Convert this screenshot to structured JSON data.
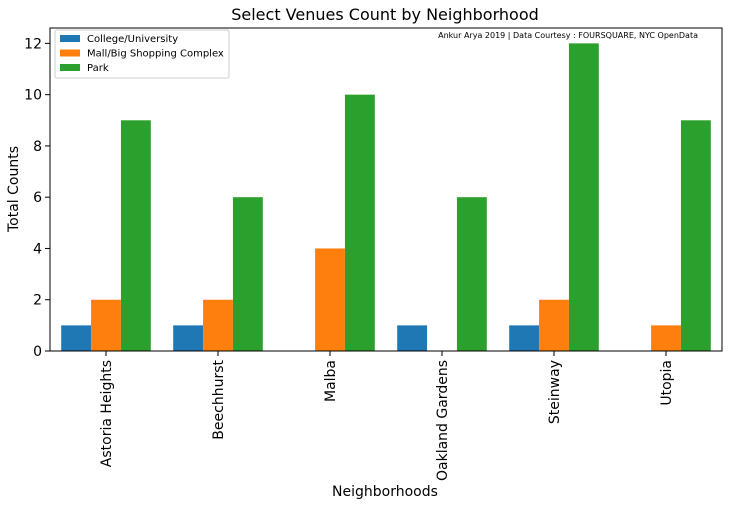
{
  "chart_data": {
    "type": "bar",
    "title": "Select Venues Count by Neighborhood",
    "xlabel": "Neighborhoods",
    "ylabel": "Total Counts",
    "annotation": "Ankur Arya 2019 | Data Courtesy : FOURSQUARE, NYC OpenData",
    "categories": [
      "Astoria Heights",
      "Beechhurst",
      "Malba",
      "Oakland Gardens",
      "Steinway",
      "Utopia"
    ],
    "series": [
      {
        "name": "College/University",
        "color": "#1f77b4",
        "values": [
          1,
          1,
          0,
          1,
          1,
          0
        ]
      },
      {
        "name": "Mall/Big Shopping Complex",
        "color": "#ff7f0e",
        "values": [
          2,
          2,
          4,
          0,
          2,
          1
        ]
      },
      {
        "name": "Park",
        "color": "#2ca02c",
        "values": [
          9,
          6,
          10,
          6,
          12,
          9
        ]
      }
    ],
    "ylim": [
      0,
      12.6
    ],
    "yticks": [
      0,
      2,
      4,
      6,
      8,
      10,
      12
    ],
    "legend_position": "top-left",
    "grid": false
  }
}
